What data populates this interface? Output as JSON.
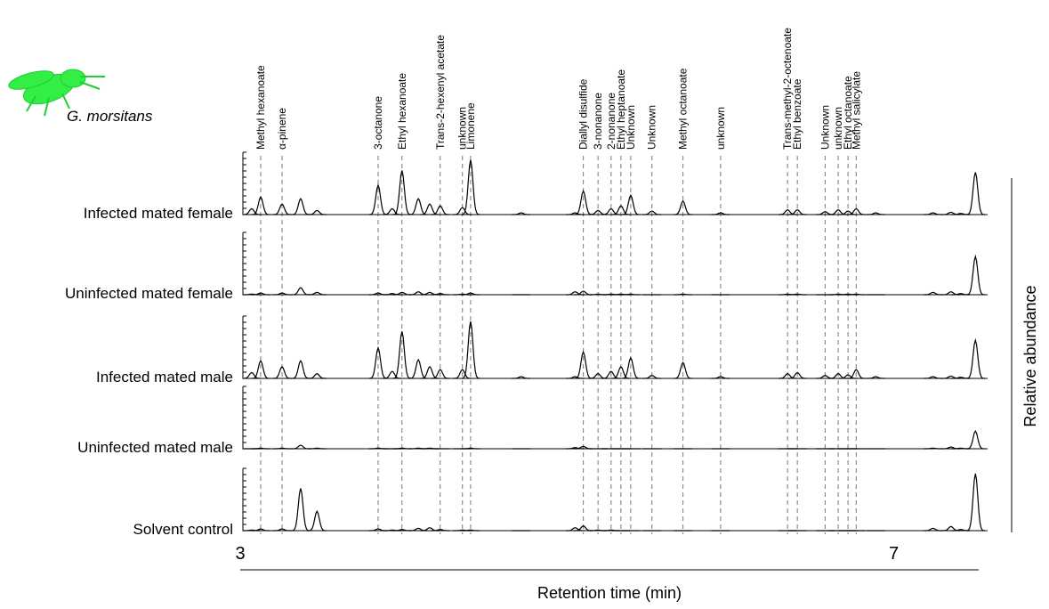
{
  "chart_data": {
    "type": "chromatogram",
    "species": "G. morsitans",
    "xlabel": "Retention time (min)",
    "ylabel": "Relative abundance",
    "xlim": [
      3,
      7.52
    ],
    "xticks": [
      3,
      7
    ],
    "compounds": {
      "labels": [
        "Methyl hexanoate",
        "α-pinene",
        "3-octanone",
        "Ethyl hexanoate",
        "Trans-2-hexenyl acetate",
        "unknown",
        "Limonene",
        "Diallyl disulfide",
        "3-nonanone",
        "2-nonanone",
        "Ethyl heptanoate",
        "Unknown",
        "Unknown",
        "Methyl octanoate",
        "unknown",
        "Trans-methyl-2-octenoate",
        "Ethyl benzoate",
        "Unknown",
        "unknown",
        "Ethyl octanoate",
        "Methyl salicylate"
      ],
      "x": [
        3.125,
        3.256,
        3.844,
        3.99,
        4.224,
        4.36,
        4.41,
        5.1,
        5.19,
        5.27,
        5.33,
        5.39,
        5.52,
        5.71,
        5.94,
        6.35,
        6.41,
        6.58,
        6.66,
        6.72,
        6.77
      ]
    },
    "x": [
      3.07,
      3.125,
      3.256,
      3.37,
      3.47,
      3.844,
      3.93,
      3.99,
      4.09,
      4.16,
      4.224,
      4.36,
      4.41,
      4.72,
      5.05,
      5.1,
      5.19,
      5.27,
      5.33,
      5.39,
      5.52,
      5.71,
      5.94,
      6.35,
      6.41,
      6.58,
      6.66,
      6.72,
      6.77,
      6.89,
      7.24,
      7.35,
      7.41,
      7.5
    ],
    "series": [
      {
        "name": "Infected mated female",
        "color": "#000000",
        "values": [
          0.1,
          0.3,
          0.18,
          0.27,
          0.07,
          0.5,
          0.1,
          0.75,
          0.27,
          0.18,
          0.15,
          0.12,
          0.93,
          0.03,
          0.03,
          0.4,
          0.07,
          0.1,
          0.15,
          0.33,
          0.06,
          0.23,
          0.03,
          0.08,
          0.08,
          0.05,
          0.08,
          0.06,
          0.1,
          0.03,
          0.03,
          0.04,
          0.02,
          0.72
        ]
      },
      {
        "name": "Uninfected mated female",
        "color": "#000000",
        "values": [
          0.01,
          0.03,
          0.03,
          0.12,
          0.04,
          0.03,
          0.02,
          0.04,
          0.05,
          0.04,
          0.02,
          0.01,
          0.03,
          0,
          0.05,
          0.06,
          0.01,
          0.01,
          0.01,
          0.01,
          0,
          0.01,
          0,
          0.01,
          0.01,
          0,
          0.01,
          0.01,
          0.01,
          0,
          0.04,
          0.05,
          0.02,
          0.65
        ]
      },
      {
        "name": "Infected mated male",
        "color": "#000000",
        "values": [
          0.1,
          0.3,
          0.2,
          0.3,
          0.08,
          0.52,
          0.12,
          0.8,
          0.32,
          0.2,
          0.15,
          0.15,
          0.97,
          0.03,
          0.03,
          0.45,
          0.08,
          0.12,
          0.2,
          0.35,
          0.05,
          0.27,
          0.03,
          0.08,
          0.1,
          0.05,
          0.08,
          0.06,
          0.15,
          0.03,
          0.03,
          0.04,
          0.02,
          0.65
        ]
      },
      {
        "name": "Uninfected mated male",
        "color": "#000000",
        "values": [
          0,
          0.01,
          0.01,
          0.06,
          0.01,
          0.01,
          0,
          0.01,
          0.01,
          0.01,
          0,
          0,
          0.01,
          0,
          0.02,
          0.04,
          0,
          0,
          0,
          0,
          0,
          0,
          0,
          0,
          0,
          0,
          0,
          0,
          0,
          0,
          0.01,
          0.03,
          0.01,
          0.3
        ]
      },
      {
        "name": "Solvent control",
        "color": "#000000",
        "values": [
          0.01,
          0.03,
          0.03,
          0.72,
          0.33,
          0.03,
          0.01,
          0.02,
          0.04,
          0.05,
          0.02,
          0.01,
          0.01,
          0,
          0.05,
          0.08,
          0.01,
          0.01,
          0,
          0,
          0,
          0,
          0,
          0,
          0,
          0,
          0,
          0,
          0,
          0,
          0.04,
          0.07,
          0.02,
          0.97
        ]
      }
    ]
  }
}
